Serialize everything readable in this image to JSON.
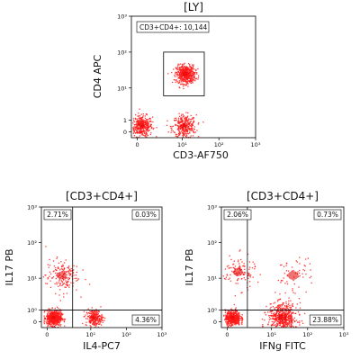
{
  "colors": {
    "events": "#ff1a1a",
    "dense": "#e00000",
    "frame": "#000000",
    "background": "#ffffff"
  },
  "chart_data": [
    {
      "type": "scatter",
      "title": "[LY]",
      "xlabel": "CD3-AF750",
      "ylabel": "CD4 APC",
      "x_ticks": [
        {
          "label": "0",
          "value": 0
        },
        {
          "label": "10¹",
          "value": 10
        },
        {
          "label": "10²",
          "value": 100
        },
        {
          "label": "10³",
          "value": 1000
        }
      ],
      "y_ticks": [
        {
          "label": "0",
          "value": 0
        },
        {
          "label": "1",
          "value": 1
        },
        {
          "label": "10¹",
          "value": 10
        },
        {
          "label": "10²",
          "value": 100
        },
        {
          "label": "10³",
          "value": 1000
        }
      ],
      "gates": [
        {
          "label": "CD3+CD4+: 10,144",
          "x_range": [
            3,
            40
          ],
          "y_range": [
            6,
            100
          ]
        }
      ],
      "populations": [
        {
          "center": [
            0.3,
            0.5
          ],
          "spread": 0.25,
          "n": 380
        },
        {
          "center": [
            11,
            0.45
          ],
          "spread": 0.28,
          "n": 320
        },
        {
          "center": [
            12,
            25
          ],
          "spread": 0.22,
          "n": 520
        }
      ]
    },
    {
      "type": "scatter",
      "title": "[CD3+CD4+]",
      "xlabel": "IL4-PC7",
      "ylabel": "IL17 PB",
      "x_ticks": [
        {
          "label": "0",
          "value": 0
        },
        {
          "label": "10¹",
          "value": 10
        },
        {
          "label": "10²",
          "value": 100
        },
        {
          "label": "10³",
          "value": 1000
        }
      ],
      "y_ticks": [
        {
          "label": "0",
          "value": 0
        },
        {
          "label": "10⁰",
          "value": 1
        },
        {
          "label": "10¹",
          "value": 10
        },
        {
          "label": "10²",
          "value": 100
        },
        {
          "label": "10³",
          "value": 1000
        }
      ],
      "quadrant_split": {
        "x": 3,
        "y": 1
      },
      "quadrants": [
        {
          "position": "top-left",
          "label": "2.71%"
        },
        {
          "position": "top-right",
          "label": "0.03%"
        },
        {
          "position": "bottom-left",
          "label": ""
        },
        {
          "position": "bottom-right",
          "label": "4.36%"
        }
      ],
      "populations": [
        {
          "center": [
            0.5,
            0.35
          ],
          "spread": 0.18,
          "n": 650
        },
        {
          "center": [
            12,
            0.35
          ],
          "spread": 0.2,
          "n": 240
        },
        {
          "center": [
            1.3,
            12
          ],
          "spread": 0.4,
          "n": 170
        }
      ]
    },
    {
      "type": "scatter",
      "title": "[CD3+CD4+]",
      "xlabel": "IFNg FITC",
      "ylabel": "IL17 PB",
      "x_ticks": [
        {
          "label": "0",
          "value": 0
        },
        {
          "label": "10¹",
          "value": 10
        },
        {
          "label": "10²",
          "value": 100
        },
        {
          "label": "10³",
          "value": 1000
        }
      ],
      "y_ticks": [
        {
          "label": "0",
          "value": 0
        },
        {
          "label": "10⁰",
          "value": 1
        },
        {
          "label": "10¹",
          "value": 10
        },
        {
          "label": "10²",
          "value": 100
        },
        {
          "label": "10³",
          "value": 1000
        }
      ],
      "quadrant_split": {
        "x": 2,
        "y": 1
      },
      "quadrants": [
        {
          "position": "top-left",
          "label": "2.06%"
        },
        {
          "position": "top-right",
          "label": "0.73%"
        },
        {
          "position": "bottom-left",
          "label": ""
        },
        {
          "position": "bottom-right",
          "label": "23.88%"
        }
      ],
      "populations": [
        {
          "center": [
            0.4,
            0.35
          ],
          "spread": 0.18,
          "n": 520
        },
        {
          "center": [
            20,
            0.35
          ],
          "spread": 0.35,
          "n": 560
        },
        {
          "center": [
            0.9,
            15
          ],
          "spread": 0.4,
          "n": 120
        },
        {
          "center": [
            40,
            12
          ],
          "spread": 0.45,
          "n": 60
        }
      ]
    }
  ]
}
